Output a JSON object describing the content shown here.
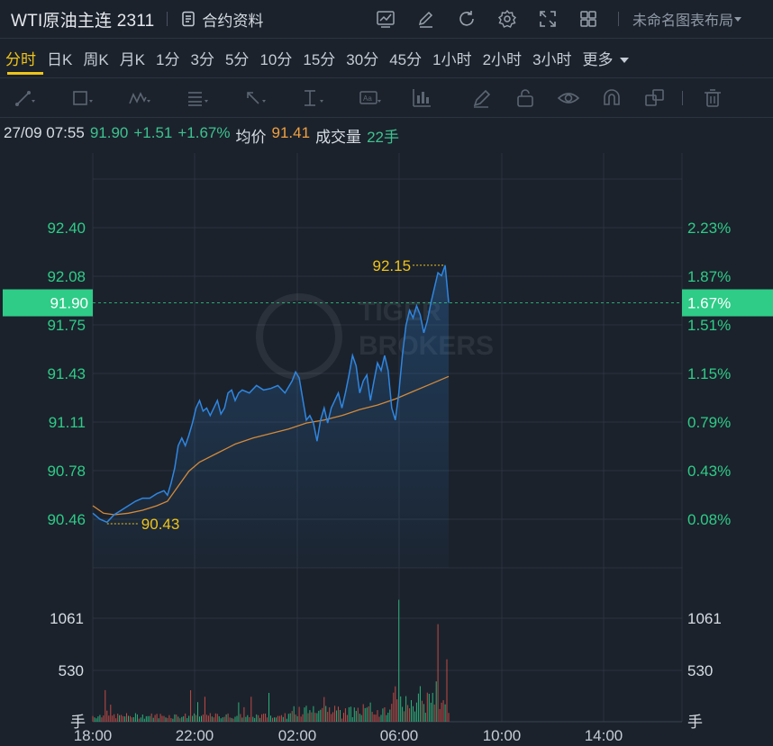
{
  "header": {
    "symbol": "WTI原油主连 2311",
    "contract_info_label": "合约资料",
    "layout_name": "未命名图表布局",
    "icons": [
      "indicator-icon",
      "edit-icon",
      "refresh-icon",
      "settings-icon",
      "fullscreen-icon",
      "grid-layout-icon"
    ]
  },
  "intervals": [
    {
      "label": "分时",
      "active": true
    },
    {
      "label": "日K",
      "active": false
    },
    {
      "label": "周K",
      "active": false
    },
    {
      "label": "月K",
      "active": false
    },
    {
      "label": "1分",
      "active": false
    },
    {
      "label": "3分",
      "active": false
    },
    {
      "label": "5分",
      "active": false
    },
    {
      "label": "10分",
      "active": false
    },
    {
      "label": "15分",
      "active": false
    },
    {
      "label": "30分",
      "active": false
    },
    {
      "label": "45分",
      "active": false
    },
    {
      "label": "1小时",
      "active": false
    },
    {
      "label": "2小时",
      "active": false
    },
    {
      "label": "3小时",
      "active": false
    },
    {
      "label": "更多",
      "active": false
    }
  ],
  "drawing_tools": [
    "line-tool-icon",
    "rectangle-tool-icon",
    "pattern-tool-icon",
    "fib-tool-icon",
    "arrow-tool-icon",
    "measure-tool-icon",
    "text-tool-icon",
    "bars-tool-icon",
    "brush-icon",
    "lock-icon",
    "eye-icon",
    "magnet-icon",
    "layers-icon",
    "trash-icon"
  ],
  "info": {
    "datetime": "27/09 07:55",
    "price": "91.90",
    "change": "+1.51",
    "change_pct": "+1.67%",
    "avg_label": "均价",
    "avg_value": "91.41",
    "volume_label": "成交量",
    "volume_value": "22手"
  },
  "colors": {
    "price_line": "#2f86e0",
    "avg_line": "#d38a3a",
    "up": "#2ecc87",
    "current_badge": "#2ecc87",
    "annotation": "#f0c419"
  },
  "chart_data": {
    "type": "line",
    "price_ticks": [
      "92.40",
      "92.08",
      "91.75",
      "91.43",
      "91.11",
      "90.78",
      "90.46"
    ],
    "pct_ticks": [
      "2.23%",
      "1.87%",
      "1.51%",
      "1.15%",
      "0.79%",
      "0.43%",
      "0.08%"
    ],
    "current_price_label": "91.90",
    "current_pct_label": "1.67%",
    "high_label": "92.15",
    "low_label": "90.43",
    "volume_ticks": [
      "1061",
      "530"
    ],
    "volume_unit": "手",
    "x_ticks": [
      "18:00",
      "22:00",
      "02:00",
      "06:00",
      "10:00",
      "14:00"
    ],
    "price_series": [
      [
        0,
        90.5
      ],
      [
        2,
        90.46
      ],
      [
        4,
        90.44
      ],
      [
        6,
        90.49
      ],
      [
        8,
        90.52
      ],
      [
        10,
        90.55
      ],
      [
        12,
        90.58
      ],
      [
        14,
        90.6
      ],
      [
        16,
        90.6
      ],
      [
        18,
        90.63
      ],
      [
        20,
        90.65
      ],
      [
        21,
        90.62
      ],
      [
        22,
        90.7
      ],
      [
        23,
        90.8
      ],
      [
        24,
        90.95
      ],
      [
        25,
        91.0
      ],
      [
        26,
        90.95
      ],
      [
        27,
        91.02
      ],
      [
        28,
        91.1
      ],
      [
        29,
        91.2
      ],
      [
        30,
        91.25
      ],
      [
        31,
        91.18
      ],
      [
        32,
        91.2
      ],
      [
        33,
        91.15
      ],
      [
        34,
        91.2
      ],
      [
        35,
        91.25
      ],
      [
        36,
        91.16
      ],
      [
        37,
        91.2
      ],
      [
        38,
        91.3
      ],
      [
        39,
        91.32
      ],
      [
        40,
        91.25
      ],
      [
        41,
        91.3
      ],
      [
        42,
        91.32
      ],
      [
        44,
        91.3
      ],
      [
        46,
        91.35
      ],
      [
        48,
        91.32
      ],
      [
        50,
        91.33
      ],
      [
        52,
        91.35
      ],
      [
        54,
        91.3
      ],
      [
        56,
        91.38
      ],
      [
        57,
        91.44
      ],
      [
        58,
        91.4
      ],
      [
        59,
        91.26
      ],
      [
        60,
        91.12
      ],
      [
        61,
        91.15
      ],
      [
        62,
        91.1
      ],
      [
        63,
        90.98
      ],
      [
        64,
        91.12
      ],
      [
        65,
        91.2
      ],
      [
        66,
        91.1
      ],
      [
        67,
        91.2
      ],
      [
        68,
        91.25
      ],
      [
        69,
        91.3
      ],
      [
        70,
        91.2
      ],
      [
        71,
        91.3
      ],
      [
        72,
        91.42
      ],
      [
        73,
        91.55
      ],
      [
        74,
        91.48
      ],
      [
        75,
        91.3
      ],
      [
        76,
        91.38
      ],
      [
        77,
        91.42
      ],
      [
        78,
        91.25
      ],
      [
        79,
        91.38
      ],
      [
        80,
        91.5
      ],
      [
        81,
        91.45
      ],
      [
        82,
        91.55
      ],
      [
        83,
        91.45
      ],
      [
        84,
        91.2
      ],
      [
        85,
        91.12
      ],
      [
        86,
        91.3
      ],
      [
        87,
        91.55
      ],
      [
        88,
        91.75
      ],
      [
        89,
        91.85
      ],
      [
        90,
        91.8
      ],
      [
        91,
        91.88
      ],
      [
        92,
        91.82
      ],
      [
        93,
        91.7
      ],
      [
        94,
        91.78
      ],
      [
        95,
        91.9
      ],
      [
        96,
        92.0
      ],
      [
        97,
        92.1
      ],
      [
        98,
        92.08
      ],
      [
        99,
        92.15
      ],
      [
        100,
        91.9
      ]
    ],
    "avg_series": [
      [
        0,
        90.55
      ],
      [
        3,
        90.5
      ],
      [
        6,
        90.49
      ],
      [
        10,
        90.5
      ],
      [
        14,
        90.52
      ],
      [
        18,
        90.55
      ],
      [
        21,
        90.58
      ],
      [
        24,
        90.68
      ],
      [
        27,
        90.78
      ],
      [
        30,
        90.84
      ],
      [
        35,
        90.9
      ],
      [
        40,
        90.96
      ],
      [
        45,
        91.0
      ],
      [
        50,
        91.03
      ],
      [
        55,
        91.06
      ],
      [
        60,
        91.1
      ],
      [
        65,
        91.12
      ],
      [
        70,
        91.15
      ],
      [
        75,
        91.19
      ],
      [
        80,
        91.22
      ],
      [
        85,
        91.26
      ],
      [
        90,
        91.31
      ],
      [
        95,
        91.36
      ],
      [
        100,
        91.41
      ]
    ],
    "price_range": [
      90.25,
      92.6
    ],
    "volume_range": [
      0,
      1400
    ]
  }
}
